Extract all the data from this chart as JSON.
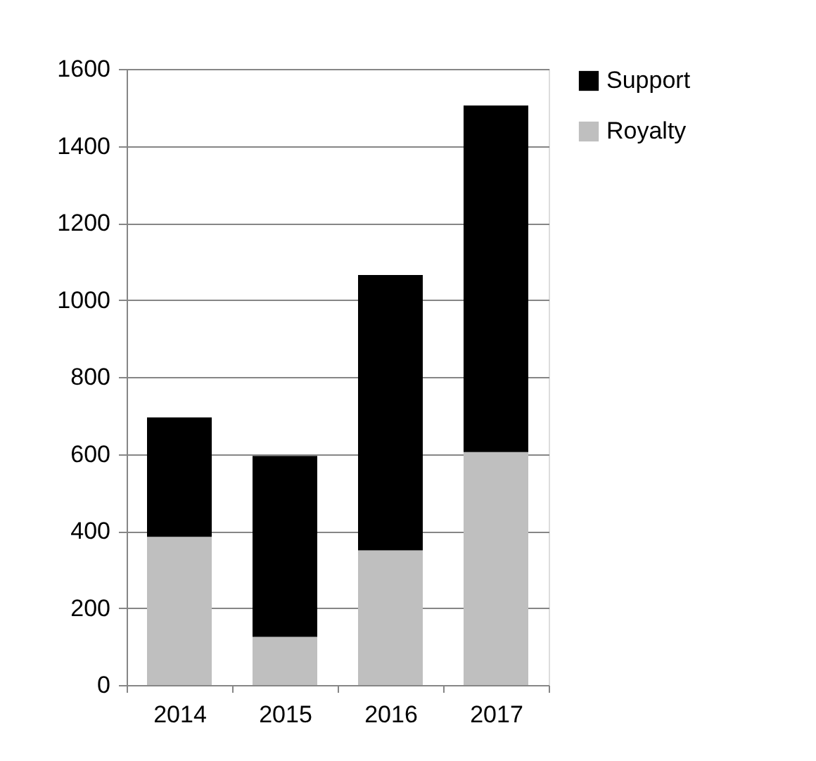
{
  "chart_data": {
    "type": "bar",
    "stacked": true,
    "categories": [
      "2014",
      "2015",
      "2016",
      "2017"
    ],
    "series": [
      {
        "name": "Royalty",
        "color": "#bfbfbf",
        "values": [
          385,
          125,
          350,
          605
        ]
      },
      {
        "name": "Support",
        "color": "#000000",
        "values": [
          310,
          470,
          715,
          900
        ]
      }
    ],
    "ylim": [
      0,
      1600
    ],
    "yticks": [
      0,
      200,
      400,
      600,
      800,
      1000,
      1200,
      1400,
      1600
    ],
    "grid": "y",
    "legend": "right"
  }
}
